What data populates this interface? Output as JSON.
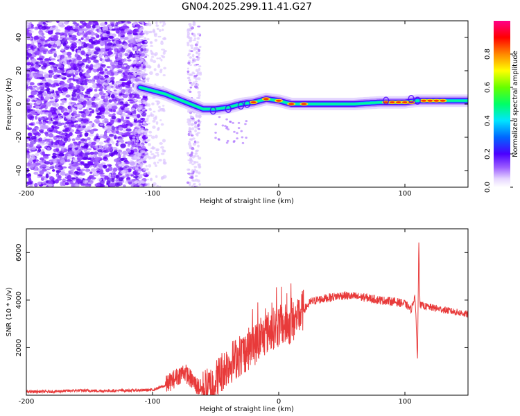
{
  "figure": {
    "title": "GN04.2025.299.11.41.G27"
  },
  "chart_data": [
    {
      "type": "heatmap",
      "name": "spectrogram",
      "title": "GN04.2025.299.11.41.G27",
      "xlabel": "Height of straight line (km)",
      "ylabel": "Frequency (Hz)",
      "xlim": [
        -200,
        150
      ],
      "ylim": [
        -50,
        50
      ],
      "xticks": [
        -200,
        -100,
        0,
        100
      ],
      "yticks": [
        -40,
        -20,
        0,
        20,
        40
      ],
      "colorbar": {
        "label": "Normalized spectral amplitude",
        "range": [
          0.0,
          1.0
        ],
        "ticks": [
          0.0,
          0.2,
          0.4,
          0.6,
          0.8
        ]
      },
      "ridge": {
        "x": [
          -110,
          -100,
          -90,
          -80,
          -70,
          -60,
          -50,
          -40,
          -30,
          -20,
          -10,
          0,
          10,
          20,
          40,
          60,
          80,
          100,
          110,
          130,
          150
        ],
        "y": [
          10,
          8,
          6,
          3,
          0,
          -3,
          -3,
          -2,
          0,
          1,
          3,
          2,
          0,
          0,
          0,
          0,
          1,
          1,
          2,
          2,
          2
        ]
      }
    },
    {
      "type": "line",
      "name": "snr",
      "xlabel": "Height of straight line (km)",
      "ylabel": "SNR (10 * v/v)",
      "xlim": [
        -200,
        150
      ],
      "ylim": [
        0,
        7000
      ],
      "xticks": [
        -200,
        -100,
        0,
        100
      ],
      "yticks": [
        2000,
        4000,
        6000
      ],
      "color": "#e83a3a",
      "series": [
        {
          "name": "SNR",
          "x": [
            -200,
            -180,
            -160,
            -140,
            -120,
            -100,
            -90,
            -80,
            -75,
            -70,
            -65,
            -60,
            -55,
            -50,
            -45,
            -40,
            -35,
            -30,
            -25,
            -20,
            -15,
            -10,
            -5,
            0,
            5,
            10,
            15,
            20,
            25,
            30,
            40,
            50,
            60,
            70,
            80,
            90,
            95,
            100,
            105,
            108,
            110,
            111,
            112,
            115,
            120,
            130,
            140,
            150
          ],
          "y": [
            150,
            150,
            200,
            180,
            200,
            220,
            400,
            800,
            1000,
            700,
            400,
            200,
            300,
            600,
            1000,
            1300,
            1500,
            1700,
            1900,
            2100,
            2300,
            2600,
            2800,
            2900,
            2950,
            3000,
            3300,
            3600,
            3900,
            4000,
            4100,
            4200,
            4150,
            4100,
            4000,
            3950,
            3900,
            3850,
            3600,
            4200,
            1500,
            6500,
            3800,
            3750,
            3700,
            3600,
            3500,
            3400
          ]
        }
      ]
    }
  ]
}
